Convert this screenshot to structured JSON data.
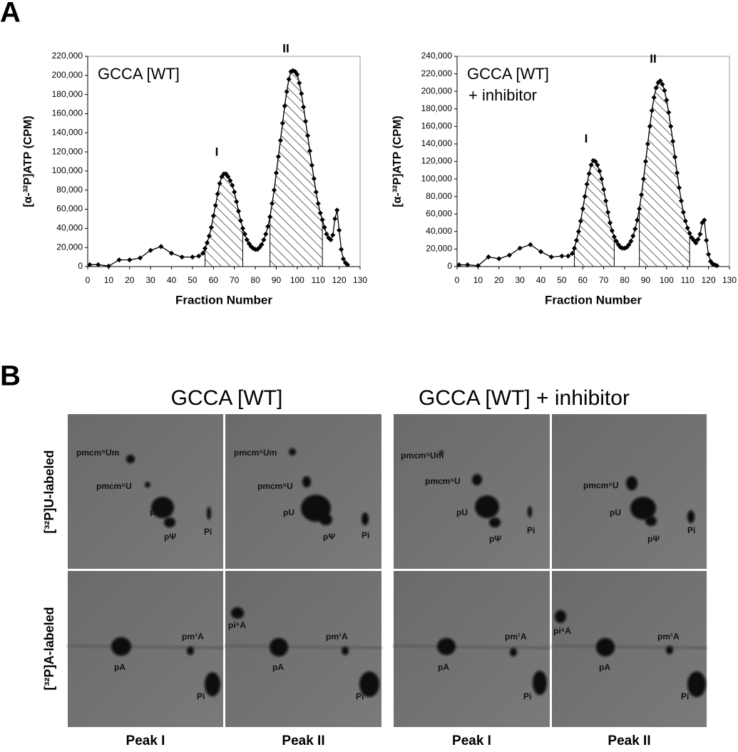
{
  "figure": {
    "panel_labels": [
      "A",
      "B"
    ]
  },
  "chart_data": [
    {
      "type": "line",
      "annotations": [
        "GCCA [WT]"
      ],
      "peak_labels": [
        "I",
        "II"
      ],
      "shaded_ranges": [
        [
          56,
          74
        ],
        [
          87,
          112
        ]
      ],
      "x_label": "Fraction Number",
      "y_label": "[α-³²P]ATP (CPM)",
      "x": [
        1,
        5,
        10,
        15,
        20,
        25,
        30,
        35,
        40,
        45,
        50,
        53,
        55,
        56,
        57,
        58,
        59,
        60,
        61,
        62,
        63,
        64,
        65,
        66,
        67,
        68,
        69,
        70,
        71,
        72,
        73,
        74,
        75,
        76,
        77,
        78,
        79,
        80,
        81,
        82,
        83,
        84,
        85,
        86,
        87,
        88,
        89,
        90,
        91,
        92,
        93,
        94,
        95,
        96,
        97,
        98,
        99,
        100,
        101,
        102,
        103,
        104,
        105,
        106,
        107,
        108,
        109,
        110,
        111,
        112,
        113,
        114,
        115,
        116,
        117,
        118,
        119,
        120,
        121,
        122,
        123,
        124
      ],
      "values": [
        2000,
        2000,
        500,
        7000,
        7000,
        9000,
        17000,
        21000,
        14000,
        10000,
        10000,
        11000,
        14000,
        19000,
        25000,
        32000,
        41000,
        53000,
        64000,
        76000,
        87000,
        94000,
        97000,
        97000,
        94000,
        90000,
        85000,
        78000,
        68000,
        58000,
        48000,
        40000,
        34000,
        28000,
        24000,
        21000,
        19000,
        18000,
        18000,
        20000,
        23000,
        28000,
        34000,
        42000,
        52000,
        66000,
        80000,
        98000,
        115000,
        132000,
        150000,
        168000,
        183000,
        196000,
        204000,
        205000,
        204000,
        201000,
        192000,
        181000,
        167000,
        152000,
        137000,
        121000,
        106000,
        92000,
        78000,
        66000,
        56000,
        49000,
        41000,
        34000,
        30000,
        28000,
        33000,
        50000,
        59000,
        38000,
        18000,
        8000,
        4000,
        2000
      ],
      "color": "#000000",
      "xlim": [
        0,
        130
      ],
      "xticks": [
        0,
        10,
        20,
        30,
        40,
        50,
        60,
        70,
        80,
        90,
        100,
        110,
        120,
        130
      ],
      "ylim": [
        0,
        220000
      ],
      "yticks": [
        0,
        {
          "value": 20000,
          "label": "20,000"
        },
        {
          "value": 40000,
          "label": "40,000"
        },
        {
          "value": 60000,
          "label": "60,000"
        },
        {
          "value": 80000,
          "label": "80,000"
        },
        {
          "value": 100000,
          "label": "100,000"
        },
        {
          "value": 120000,
          "label": "120,000"
        },
        {
          "value": 140000,
          "label": "140,000"
        },
        {
          "value": 160000,
          "label": "160,000"
        },
        {
          "value": 180000,
          "label": "180,000"
        },
        {
          "value": 200000,
          "label": "200,000"
        },
        {
          "value": 220000,
          "label": "220,000"
        }
      ]
    },
    {
      "type": "line",
      "annotations": [
        "GCCA [WT]",
        "+ inhibitor"
      ],
      "peak_labels": [
        "I",
        "II"
      ],
      "shaded_ranges": [
        [
          56,
          75
        ],
        [
          87,
          111
        ]
      ],
      "x_label": "Fraction Number",
      "y_label": "[α-³²P]ATP (CPM)",
      "x": [
        1,
        5,
        10,
        15,
        20,
        25,
        30,
        35,
        40,
        45,
        50,
        53,
        55,
        56,
        57,
        58,
        59,
        60,
        61,
        62,
        63,
        64,
        65,
        66,
        67,
        68,
        69,
        70,
        71,
        72,
        73,
        74,
        75,
        76,
        77,
        78,
        79,
        80,
        81,
        82,
        83,
        84,
        85,
        86,
        87,
        88,
        89,
        90,
        91,
        92,
        93,
        94,
        95,
        96,
        97,
        98,
        99,
        100,
        101,
        102,
        103,
        104,
        105,
        106,
        107,
        108,
        109,
        110,
        111,
        112,
        113,
        114,
        115,
        116,
        117,
        118,
        119,
        120,
        121,
        122,
        123,
        124
      ],
      "values": [
        2000,
        2000,
        1000,
        11000,
        9000,
        13000,
        21000,
        25000,
        17000,
        11000,
        12000,
        12000,
        15000,
        21000,
        30000,
        40000,
        52000,
        66000,
        80000,
        94000,
        106000,
        116000,
        121000,
        120000,
        116000,
        109000,
        100000,
        88000,
        75000,
        62000,
        50000,
        41000,
        34000,
        29000,
        25000,
        22000,
        21000,
        21000,
        22000,
        25000,
        29000,
        35000,
        43000,
        53000,
        66000,
        82000,
        100000,
        120000,
        140000,
        160000,
        178000,
        193000,
        204000,
        210000,
        212000,
        208000,
        201000,
        190000,
        176000,
        160000,
        143000,
        125000,
        107000,
        90000,
        75000,
        62000,
        52000,
        44000,
        38000,
        33000,
        30000,
        27000,
        31000,
        37000,
        50000,
        53000,
        30000,
        14000,
        6000,
        3000,
        2000,
        1000
      ],
      "color": "#000000",
      "xlim": [
        0,
        130
      ],
      "xticks": [
        0,
        10,
        20,
        30,
        40,
        50,
        60,
        70,
        80,
        90,
        100,
        110,
        120,
        130
      ],
      "ylim": [
        0,
        240000
      ],
      "yticks": [
        0,
        {
          "value": 20000,
          "label": "20,000"
        },
        {
          "value": 40000,
          "label": "40,000"
        },
        {
          "value": 60000,
          "label": "60,000"
        },
        {
          "value": 80000,
          "label": "80,000"
        },
        {
          "value": 100000,
          "label": "100,000"
        },
        {
          "value": 120000,
          "label": "120,000"
        },
        {
          "value": 140000,
          "label": "140,000"
        },
        {
          "value": 160000,
          "label": "160,000"
        },
        {
          "value": 180000,
          "label": "180,000"
        },
        {
          "value": 200000,
          "label": "200,000"
        },
        {
          "value": 220000,
          "label": "220,000"
        },
        {
          "value": 240000,
          "label": "240,000"
        }
      ]
    }
  ],
  "panel_b": {
    "groups": [
      {
        "title": "GCCA [WT]",
        "columns": [
          "Peak I",
          "Peak II"
        ]
      },
      {
        "title": "GCCA [WT] + inhibitor",
        "columns": [
          "Peak I",
          "Peak II"
        ]
      }
    ],
    "rows": [
      "[³²P]U-labeled",
      "[³²P]A-labeled"
    ],
    "gels": [
      [
        "pmcm⁵Um",
        "pmcm⁵U",
        "pU",
        "pΨ",
        "Pi"
      ],
      [
        "pmcm⁵Um",
        "pmcm⁵U",
        "pU",
        "pΨ",
        "Pi"
      ],
      [
        "pmcm⁵Um",
        "pmcm⁵U",
        "pU",
        "pΨ",
        "Pi"
      ],
      [
        "pmcm⁵U",
        "pU",
        "pΨ",
        "Pi"
      ],
      [
        "pA",
        "pm¹A",
        "Pi"
      ],
      [
        "pi⁶A",
        "pA",
        "pm¹A",
        "Pi"
      ],
      [
        "pA",
        "pm¹A",
        "Pi"
      ],
      [
        "pi⁶A",
        "pA",
        "pm¹A",
        "Pi"
      ]
    ]
  }
}
